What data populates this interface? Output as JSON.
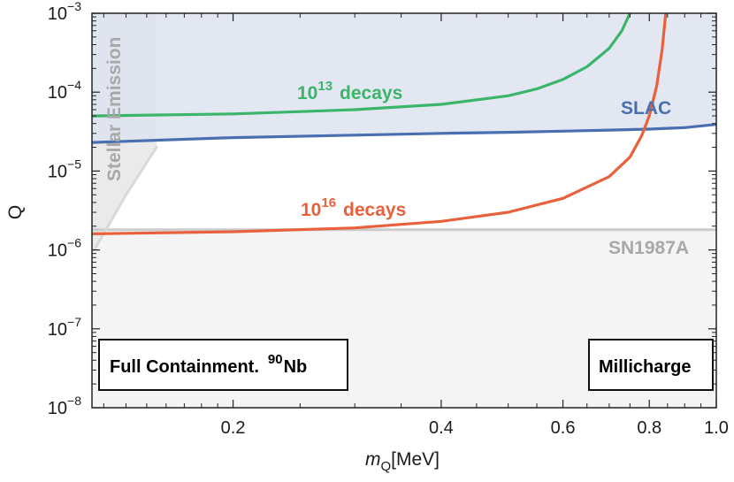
{
  "chart_data": {
    "type": "line",
    "xscale": "log",
    "yscale": "log",
    "xlim": [
      0.125,
      1.0
    ],
    "ylim": [
      1e-08,
      0.001
    ],
    "xlabel": {
      "base": "m",
      "sub": "Q",
      "unit": "[MeV]"
    },
    "ylabel": "Q",
    "xticks": [
      {
        "value": 0.2,
        "label": "0.2"
      },
      {
        "value": 0.4,
        "label": "0.4"
      },
      {
        "value": 0.6,
        "label": "0.6"
      },
      {
        "value": 0.8,
        "label": "0.8"
      },
      {
        "value": 1.0,
        "label": "1.0"
      }
    ],
    "yticks": [
      {
        "value": 1e-08,
        "base": "10",
        "exp": "−8"
      },
      {
        "value": 1e-07,
        "base": "10",
        "exp": "−7"
      },
      {
        "value": 1e-06,
        "base": "10",
        "exp": "−6"
      },
      {
        "value": 1e-05,
        "base": "10",
        "exp": "−5"
      },
      {
        "value": 0.0001,
        "base": "10",
        "exp": "−4"
      },
      {
        "value": 0.001,
        "base": "10",
        "exp": "−3"
      }
    ],
    "series": [
      {
        "name": "SLAC",
        "color": "#4a6fb0",
        "fill": "#dde3ee",
        "x": [
          0.125,
          0.2,
          0.3,
          0.4,
          0.5,
          0.6,
          0.7,
          0.8,
          0.9,
          1.0
        ],
        "y": [
          2.3e-05,
          2.65e-05,
          2.85e-05,
          3e-05,
          3.1e-05,
          3.2e-05,
          3.3e-05,
          3.4e-05,
          3.55e-05,
          3.9e-05
        ]
      },
      {
        "name": "SN1987A",
        "color": "#cccccc",
        "fill": "#f4f4f4",
        "x": [
          0.125,
          1.0
        ],
        "y": [
          1.8e-06,
          1.8e-06
        ]
      },
      {
        "name": "Stellar Emission",
        "color": "#d9d9d9",
        "fill": "#eaeaea",
        "x": [
          0.126,
          0.14,
          0.155
        ],
        "y": [
          1e-06,
          5e-06,
          2e-05
        ]
      },
      {
        "name": "10^13 decays",
        "color": "#3ab56a",
        "x": [
          0.125,
          0.2,
          0.3,
          0.4,
          0.5,
          0.55,
          0.6,
          0.65,
          0.7,
          0.73,
          0.75
        ],
        "y": [
          5e-05,
          5.3e-05,
          6e-05,
          7e-05,
          9e-05,
          0.00011,
          0.000145,
          0.00021,
          0.00036,
          0.0006,
          0.001
        ]
      },
      {
        "name": "10^16 decays",
        "color": "#e8613c",
        "x": [
          0.125,
          0.2,
          0.3,
          0.4,
          0.5,
          0.6,
          0.7,
          0.75,
          0.78,
          0.8,
          0.82,
          0.835,
          0.845
        ],
        "y": [
          1.6e-06,
          1.7e-06,
          1.9e-06,
          2.3e-06,
          3e-06,
          4.5e-06,
          8.5e-06,
          1.5e-05,
          2.8e-05,
          5e-05,
          0.00012,
          0.00035,
          0.001
        ]
      }
    ],
    "labels": {
      "slac": "SLAC",
      "sn": "SN1987A",
      "stellar": "Stellar Emission",
      "d13_base": "10",
      "d13_exp": "13",
      "d13_word": "decays",
      "d16_base": "10",
      "d16_exp": "16",
      "d16_word": "decays"
    },
    "boxes": {
      "left_text": "Full Containment.",
      "left_iso_mass": "90",
      "left_iso_elem": "Nb",
      "right_text": "Millicharge"
    },
    "grid": false,
    "legend": "none"
  }
}
